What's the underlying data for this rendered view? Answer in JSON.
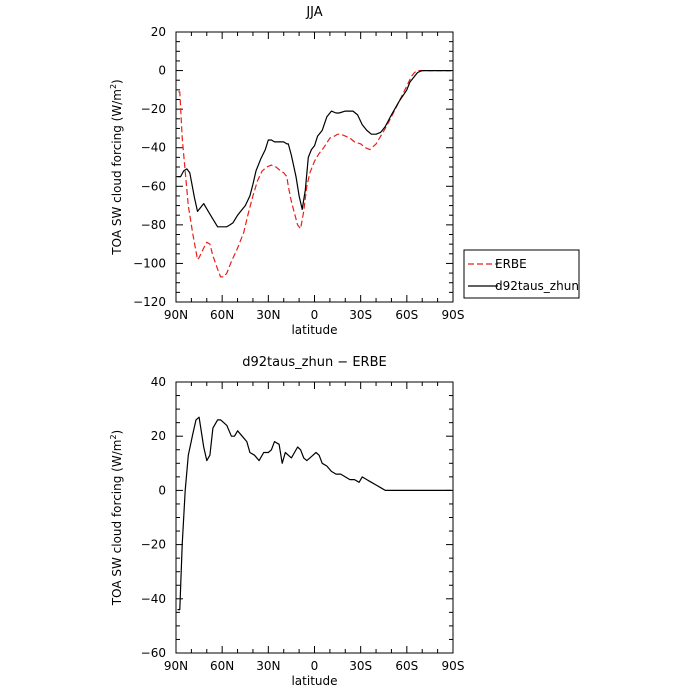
{
  "chart_data": [
    {
      "type": "line",
      "title": "JJA",
      "xlabel": "latitude",
      "ylabel": "TOA SW cloud forcing (W/m",
      "ylabel_sup": "2",
      "ylabel_close": ")",
      "xlim": [
        90,
        -90
      ],
      "ylim": [
        -120,
        20
      ],
      "x_ticks": [
        90,
        60,
        30,
        0,
        -30,
        -60,
        -90
      ],
      "x_tick_labels": [
        "90N",
        "60N",
        "30N",
        "0",
        "30S",
        "60S",
        "90S"
      ],
      "y_ticks": [
        20,
        0,
        -20,
        -40,
        -60,
        -80,
        -100,
        -120
      ],
      "y_tick_labels": [
        "20",
        "0",
        "−20",
        "−40",
        "−60",
        "−80",
        "−100",
        "−120"
      ],
      "legend_position": "right",
      "series": [
        {
          "name": "ERBE",
          "color": "#e8201b",
          "dash": "6,3",
          "x": [
            88.5,
            87.5,
            86,
            82,
            79,
            76,
            75,
            72,
            70,
            68,
            66,
            63,
            61,
            59,
            57,
            54,
            50,
            46,
            43,
            40,
            37,
            34,
            31,
            28,
            25,
            22,
            20,
            18,
            17,
            15,
            11,
            9,
            7,
            5,
            3,
            0,
            -3,
            -6,
            -10,
            -13,
            -15,
            -17,
            -20,
            -23,
            -26,
            -30,
            -33,
            -36,
            -40,
            -43,
            -46,
            -50,
            -55,
            -60,
            -63,
            -65,
            -67,
            -70,
            -75,
            -80,
            -85,
            -88
          ],
          "y": [
            -11,
            -11,
            -35,
            -70,
            -85,
            -98,
            -97,
            -92,
            -89,
            -90,
            -96,
            -103,
            -107,
            -107,
            -105,
            -99,
            -92,
            -84,
            -74,
            -65,
            -57,
            -52,
            -50,
            -49,
            -50,
            -52,
            -53,
            -55,
            -60,
            -68,
            -80,
            -82,
            -73,
            -60,
            -53,
            -47,
            -43,
            -40,
            -35,
            -34,
            -33,
            -33,
            -34,
            -35,
            -37,
            -38,
            -40,
            -41,
            -38,
            -34,
            -30,
            -24,
            -16,
            -8,
            -3,
            -1,
            0,
            0,
            0,
            0,
            0,
            0
          ]
        },
        {
          "name": "d92taus_zhun",
          "color": "#000000",
          "dash": "",
          "x": [
            89,
            87,
            85,
            83,
            81,
            78,
            76,
            74,
            72,
            69,
            66,
            63,
            60,
            57,
            55,
            53,
            50,
            48,
            45,
            42,
            40,
            38,
            35,
            32,
            30,
            28,
            26,
            23,
            20,
            18,
            17,
            15,
            12,
            10,
            8,
            6,
            4,
            2,
            0,
            -2,
            -5,
            -8,
            -11,
            -14,
            -16,
            -20,
            -25,
            -28,
            -31,
            -34,
            -37,
            -40,
            -43,
            -46,
            -50,
            -55,
            -60,
            -62,
            -65,
            -67,
            -70,
            -75,
            -80,
            -85,
            -89
          ],
          "y": [
            -55,
            -55,
            -52,
            -51,
            -53,
            -66,
            -73,
            -71,
            -69,
            -73,
            -77,
            -81,
            -81,
            -81,
            -80,
            -79,
            -75,
            -73,
            -70,
            -65,
            -59,
            -52,
            -46,
            -41,
            -36,
            -36,
            -37,
            -37,
            -37,
            -38,
            -38,
            -44,
            -55,
            -65,
            -72,
            -62,
            -45,
            -41,
            -39,
            -34,
            -31,
            -24,
            -21,
            -22,
            -22,
            -21,
            -21,
            -23,
            -28,
            -31,
            -33,
            -33,
            -32,
            -29,
            -23,
            -16,
            -10,
            -6,
            -3,
            -1,
            0,
            0,
            0,
            0,
            0
          ]
        }
      ]
    },
    {
      "type": "line",
      "title": "d92taus_zhun − ERBE",
      "xlabel": "latitude",
      "ylabel": "TOA SW cloud forcing (W/m",
      "ylabel_sup": "2",
      "ylabel_close": ")",
      "xlim": [
        90,
        -90
      ],
      "ylim": [
        -60,
        40
      ],
      "x_ticks": [
        90,
        60,
        30,
        0,
        -30,
        -60,
        -90
      ],
      "x_tick_labels": [
        "90N",
        "60N",
        "30N",
        "0",
        "30S",
        "60S",
        "90S"
      ],
      "y_ticks": [
        40,
        20,
        0,
        -20,
        -40,
        -60
      ],
      "y_tick_labels": [
        "40",
        "20",
        "0",
        "−20",
        "−40",
        "−60"
      ],
      "series": [
        {
          "color": "#000000",
          "dash": "",
          "x": [
            89,
            87.5,
            86,
            84,
            82,
            79,
            77,
            75,
            72,
            70,
            68,
            66,
            63,
            61,
            59,
            57,
            54,
            52,
            50,
            47,
            44,
            42,
            39,
            36,
            33,
            30,
            28,
            26,
            23,
            21,
            19,
            17,
            15,
            13,
            11,
            9,
            7,
            5,
            3,
            1,
            -1,
            -3,
            -5,
            -8,
            -11,
            -14,
            -17,
            -20,
            -23,
            -26,
            -29,
            -31,
            -34,
            -37,
            -40,
            -43,
            -46,
            -50,
            -53,
            -56,
            -58,
            -60,
            -63,
            -66,
            -68,
            -70,
            -73,
            -76,
            -80,
            -84,
            -87,
            -89
          ],
          "y": [
            -44,
            -44,
            -20,
            0,
            13,
            21,
            26,
            27,
            16,
            11,
            13,
            23,
            26,
            26,
            25,
            24,
            20,
            20,
            22,
            20,
            18,
            14,
            13,
            11,
            14,
            14,
            15,
            18,
            17,
            10,
            14,
            13,
            12,
            14,
            16,
            15,
            12,
            11,
            12,
            13,
            14,
            13,
            10,
            9,
            7,
            6,
            6,
            5,
            4,
            4,
            3,
            5,
            4,
            3,
            2,
            1,
            0,
            0,
            0,
            0,
            0,
            0,
            0,
            0,
            0,
            0,
            0,
            0,
            0,
            0,
            0,
            0
          ]
        }
      ]
    }
  ]
}
